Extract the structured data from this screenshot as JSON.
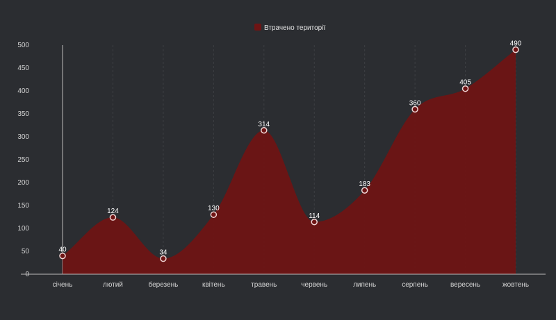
{
  "chart_data": {
    "type": "area",
    "categories": [
      "січень",
      "лютий",
      "березень",
      "квітень",
      "травень",
      "червень",
      "липень",
      "серпень",
      "вересень",
      "жовтень"
    ],
    "series": [
      {
        "name": "Втрачено території",
        "values": [
          40,
          124,
          34,
          130,
          314,
          114,
          183,
          360,
          405,
          490
        ],
        "color": "#6e1414"
      }
    ],
    "y_ticks": [
      0,
      50,
      100,
      150,
      200,
      250,
      300,
      350,
      400,
      450,
      500
    ],
    "ylim": [
      0,
      500
    ],
    "grid": "vertical",
    "legend_position": "top-center",
    "colors": {
      "background": "#2b2d31",
      "area": "#6e1414",
      "grid": "#3d3f44",
      "marker_stroke": "#f1d6d6"
    }
  }
}
